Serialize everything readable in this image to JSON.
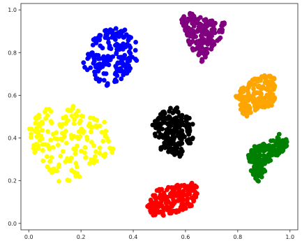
{
  "chart_data": {
    "type": "scatter",
    "title": "",
    "xlabel": "",
    "ylabel": "",
    "xlim": [
      -0.03,
      1.03
    ],
    "ylim": [
      -0.03,
      1.03
    ],
    "x_ticks": [
      "0.0",
      "0.2",
      "0.4",
      "0.6",
      "0.8",
      "1.0"
    ],
    "y_ticks": [
      "0.0",
      "0.2",
      "0.4",
      "0.6",
      "0.8",
      "1.0"
    ],
    "grid": false,
    "legend": "none",
    "marker": "filled circle",
    "clusters": [
      {
        "color": "#0000ff",
        "x_range": [
          0.2,
          0.43
        ],
        "y_range": [
          0.64,
          0.92
        ],
        "polygon": [
          [
            0.2,
            0.75
          ],
          [
            0.25,
            0.87
          ],
          [
            0.3,
            0.92
          ],
          [
            0.38,
            0.91
          ],
          [
            0.42,
            0.84
          ],
          [
            0.42,
            0.76
          ],
          [
            0.38,
            0.69
          ],
          [
            0.29,
            0.64
          ],
          [
            0.22,
            0.71
          ]
        ]
      },
      {
        "color": "#800080",
        "x_range": [
          0.58,
          0.76
        ],
        "y_range": [
          0.75,
          0.99
        ],
        "polygon": [
          [
            0.58,
            0.96
          ],
          [
            0.61,
            0.99
          ],
          [
            0.67,
            0.96
          ],
          [
            0.75,
            0.94
          ],
          [
            0.74,
            0.88
          ],
          [
            0.69,
            0.8
          ],
          [
            0.66,
            0.75
          ],
          [
            0.62,
            0.82
          ],
          [
            0.6,
            0.9
          ]
        ]
      },
      {
        "color": "#ffa500",
        "x_range": [
          0.79,
          0.97
        ],
        "y_range": [
          0.49,
          0.7
        ],
        "polygon": [
          [
            0.79,
            0.6
          ],
          [
            0.83,
            0.65
          ],
          [
            0.88,
            0.7
          ],
          [
            0.94,
            0.69
          ],
          [
            0.96,
            0.61
          ],
          [
            0.93,
            0.55
          ],
          [
            0.86,
            0.52
          ],
          [
            0.83,
            0.49
          ],
          [
            0.8,
            0.56
          ]
        ]
      },
      {
        "color": "#ffff00",
        "x_range": [
          0.0,
          0.33
        ],
        "y_range": [
          0.15,
          0.55
        ],
        "polygon": [
          [
            0.0,
            0.45
          ],
          [
            0.04,
            0.54
          ],
          [
            0.12,
            0.53
          ],
          [
            0.17,
            0.55
          ],
          [
            0.3,
            0.47
          ],
          [
            0.33,
            0.32
          ],
          [
            0.25,
            0.28
          ],
          [
            0.17,
            0.19
          ],
          [
            0.14,
            0.15
          ],
          [
            0.08,
            0.25
          ],
          [
            0.02,
            0.33
          ]
        ]
      },
      {
        "color": "#000000",
        "x_range": [
          0.47,
          0.64
        ],
        "y_range": [
          0.31,
          0.55
        ],
        "polygon": [
          [
            0.47,
            0.47
          ],
          [
            0.52,
            0.53
          ],
          [
            0.56,
            0.55
          ],
          [
            0.6,
            0.52
          ],
          [
            0.63,
            0.47
          ],
          [
            0.63,
            0.39
          ],
          [
            0.58,
            0.31
          ],
          [
            0.5,
            0.35
          ],
          [
            0.48,
            0.41
          ]
        ]
      },
      {
        "color": "#ff0000",
        "x_range": [
          0.45,
          0.65
        ],
        "y_range": [
          0.03,
          0.2
        ],
        "polygon": [
          [
            0.45,
            0.08
          ],
          [
            0.49,
            0.16
          ],
          [
            0.57,
            0.18
          ],
          [
            0.62,
            0.2
          ],
          [
            0.65,
            0.16
          ],
          [
            0.63,
            0.08
          ],
          [
            0.57,
            0.05
          ],
          [
            0.5,
            0.03
          ],
          [
            0.47,
            0.04
          ]
        ]
      },
      {
        "color": "#008000",
        "x_range": [
          0.84,
          1.0
        ],
        "y_range": [
          0.19,
          0.43
        ],
        "polygon": [
          [
            0.84,
            0.32
          ],
          [
            0.86,
            0.36
          ],
          [
            0.92,
            0.38
          ],
          [
            0.96,
            0.42
          ],
          [
            1.0,
            0.38
          ],
          [
            0.98,
            0.34
          ],
          [
            0.93,
            0.3
          ],
          [
            0.88,
            0.19
          ],
          [
            0.85,
            0.24
          ]
        ]
      }
    ]
  }
}
